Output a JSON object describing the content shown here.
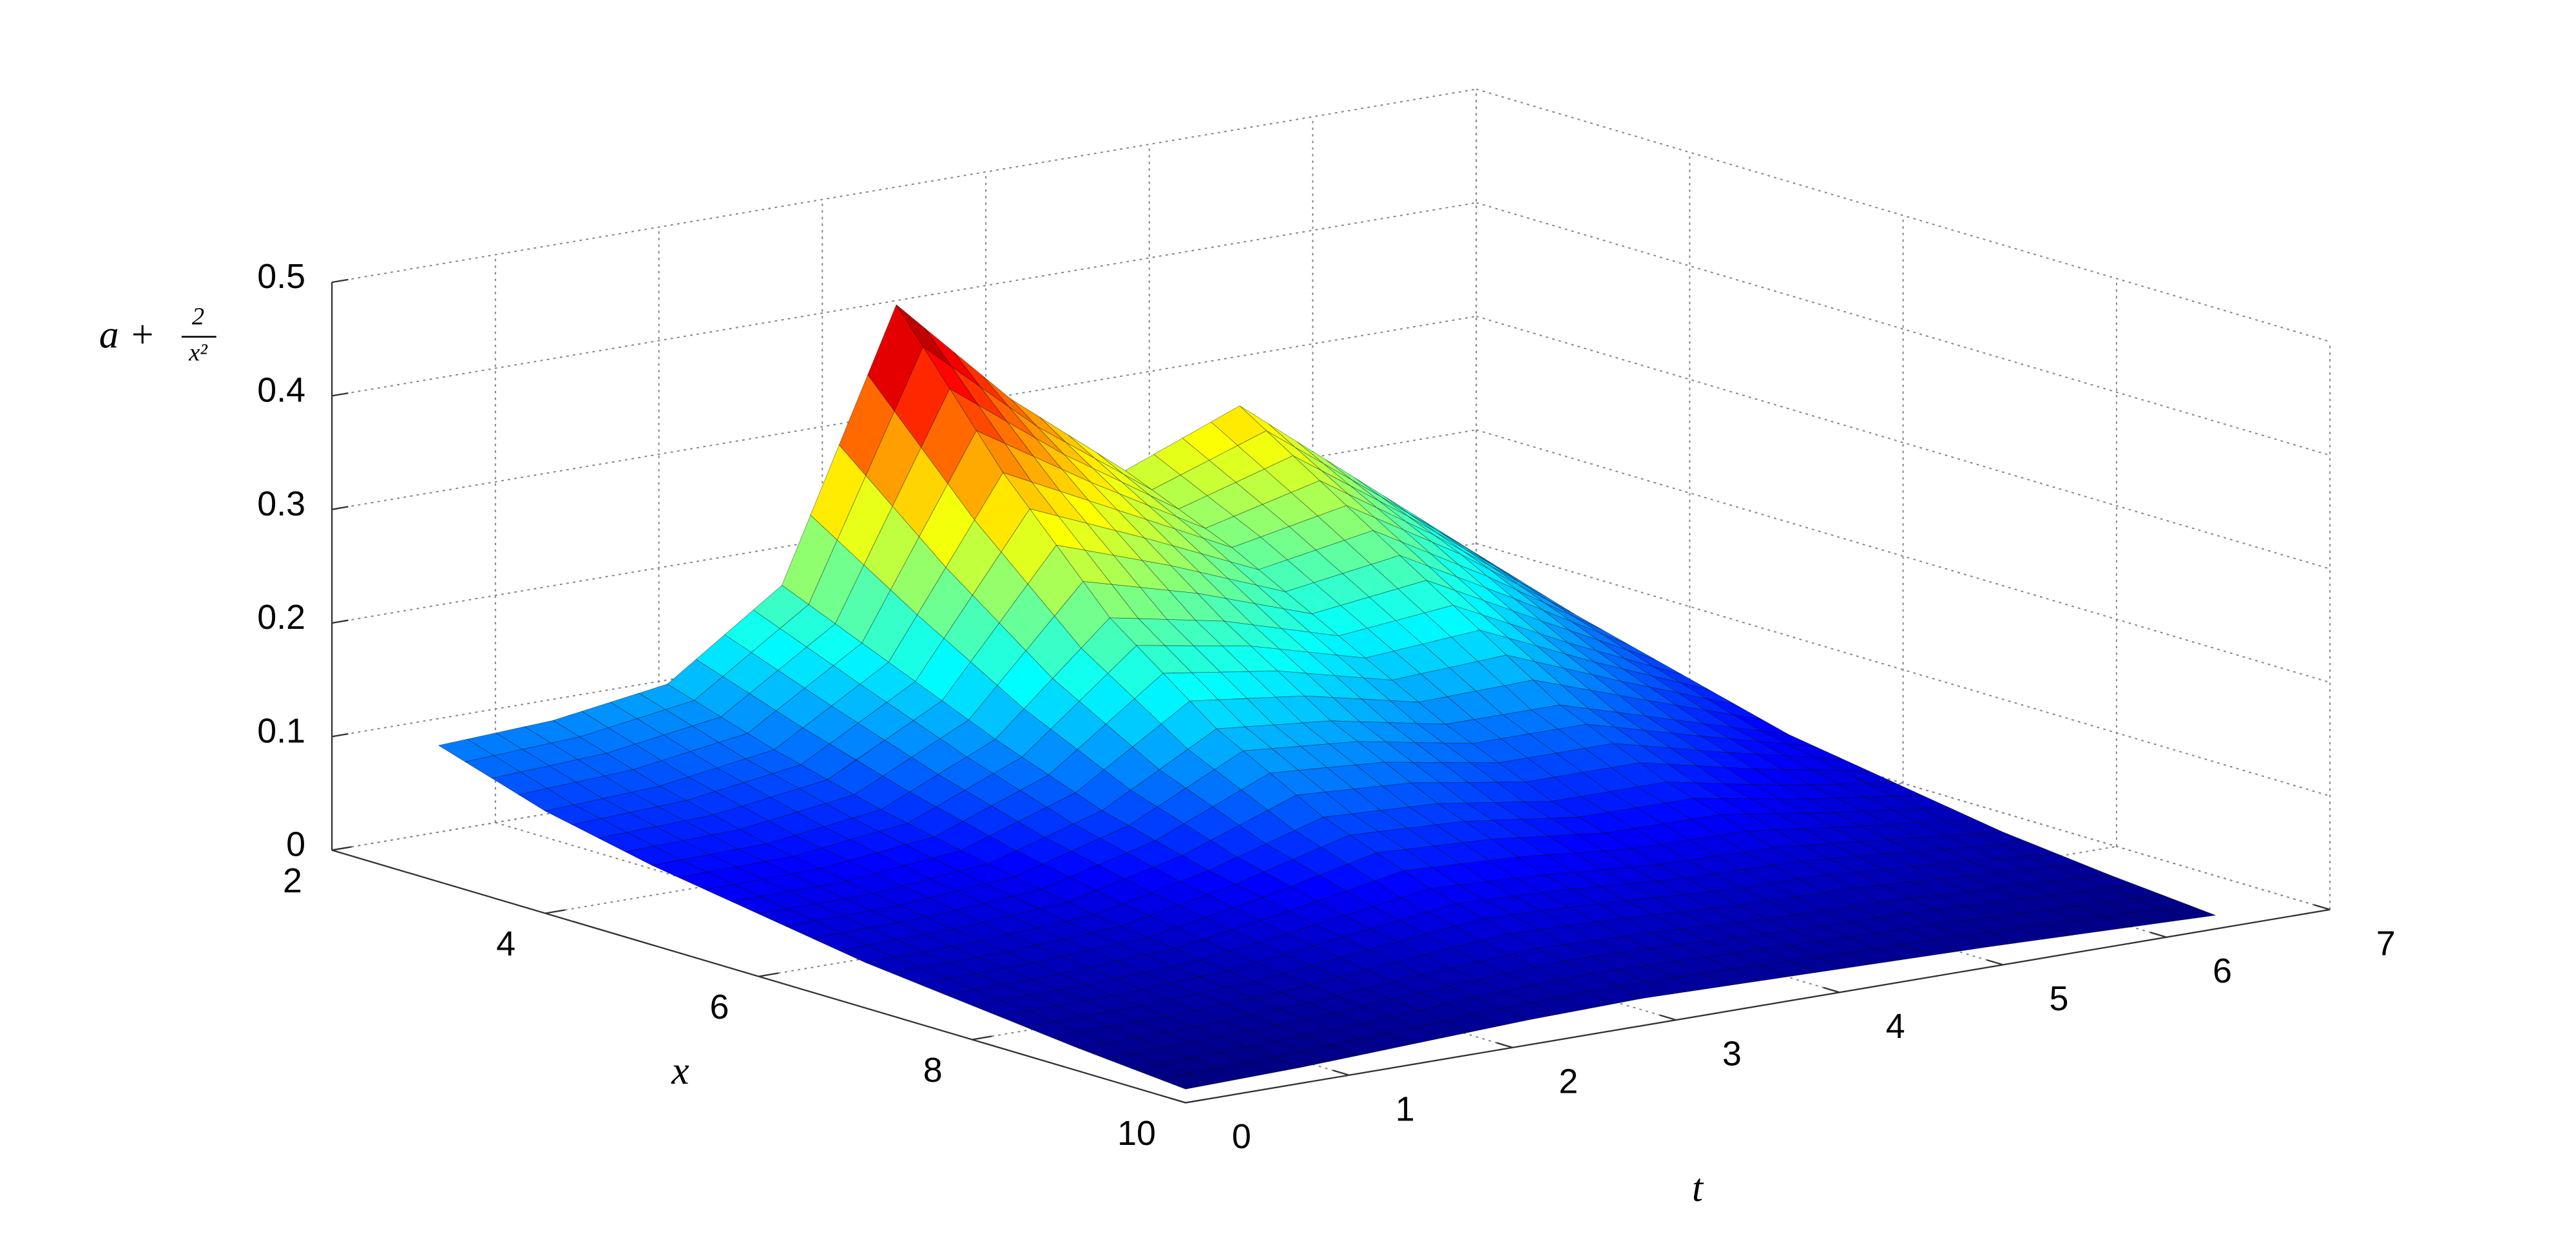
{
  "chart_data": {
    "type": "surface",
    "colormap": "jet",
    "xlabel": "x",
    "ylabel": "t",
    "zlabel": [
      "a +",
      "2",
      "x²"
    ],
    "x": [
      3,
      4,
      5,
      6,
      7,
      8,
      9,
      10
    ],
    "t": [
      0,
      0.7,
      1.4,
      2.1,
      2.8,
      3.5,
      4.2,
      4.9,
      5.6,
      6.3
    ],
    "z": [
      [
        0.12,
        0.125,
        0.14,
        0.21,
        0.44,
        0.34,
        0.26,
        0.3,
        0.22,
        0.14
      ],
      [
        0.09,
        0.095,
        0.11,
        0.17,
        0.32,
        0.27,
        0.22,
        0.24,
        0.18,
        0.11
      ],
      [
        0.07,
        0.072,
        0.085,
        0.13,
        0.22,
        0.2,
        0.17,
        0.18,
        0.13,
        0.085
      ],
      [
        0.055,
        0.056,
        0.065,
        0.095,
        0.15,
        0.14,
        0.12,
        0.12,
        0.09,
        0.06
      ],
      [
        0.04,
        0.042,
        0.048,
        0.07,
        0.1,
        0.095,
        0.08,
        0.08,
        0.06,
        0.045
      ],
      [
        0.03,
        0.031,
        0.036,
        0.05,
        0.065,
        0.06,
        0.052,
        0.05,
        0.04,
        0.03
      ],
      [
        0.02,
        0.022,
        0.026,
        0.034,
        0.04,
        0.037,
        0.032,
        0.03,
        0.025,
        0.02
      ],
      [
        0.012,
        0.014,
        0.018,
        0.022,
        0.024,
        0.022,
        0.02,
        0.018,
        0.015,
        0.012
      ]
    ],
    "xlim": [
      2,
      10
    ],
    "xticks": [
      2,
      4,
      6,
      8,
      10
    ],
    "ylim": [
      0,
      7
    ],
    "yticks": [
      0,
      1,
      2,
      3,
      4,
      5,
      6,
      7
    ],
    "zlim": [
      0,
      0.5
    ],
    "zticks": [
      0,
      0.1,
      0.2,
      0.3,
      0.4,
      0.5
    ],
    "grid": true,
    "mesh_color": "#000000"
  }
}
